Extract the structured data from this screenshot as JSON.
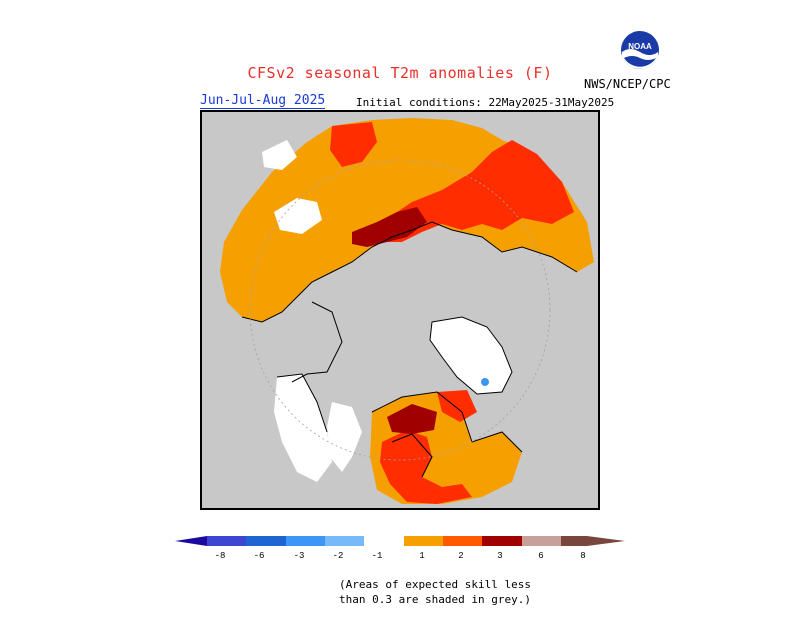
{
  "header": {
    "title": "CFSv2 seasonal T2m anomalies (F)",
    "season": "Jun-Jul-Aug 2025",
    "initial_conditions": "Initial conditions: 22May2025-31May2025",
    "agency": "NWS/NCEP/CPC",
    "logo_text": "NOAA"
  },
  "legend": {
    "ticks": [
      "-8",
      "-6",
      "-3",
      "-2",
      "-1",
      "1",
      "2",
      "3",
      "6",
      "8"
    ],
    "colors": {
      "lt_minus8": "#1c0aa0",
      "m8_m6": "#3c46d0",
      "m6_m3": "#1e64d2",
      "m3_m2": "#3c96f5",
      "m2_m1": "#78b9fa",
      "m1_p1": "#ffffff",
      "p1_p2": "#f5a000",
      "p2_p3": "#ff5a00",
      "p3_p6": "#ff2d00",
      "p6_p8": "#a00000",
      "gt_p8_a": "#c8a09b",
      "gt_p8_b": "#78463c"
    }
  },
  "map": {
    "projection": "north polar stereographic",
    "skill_mask_color": "#c8c8c8"
  },
  "footnote": {
    "line1": "(Areas of expected skill less",
    "line2": "than 0.3 are shaded in grey.)"
  }
}
